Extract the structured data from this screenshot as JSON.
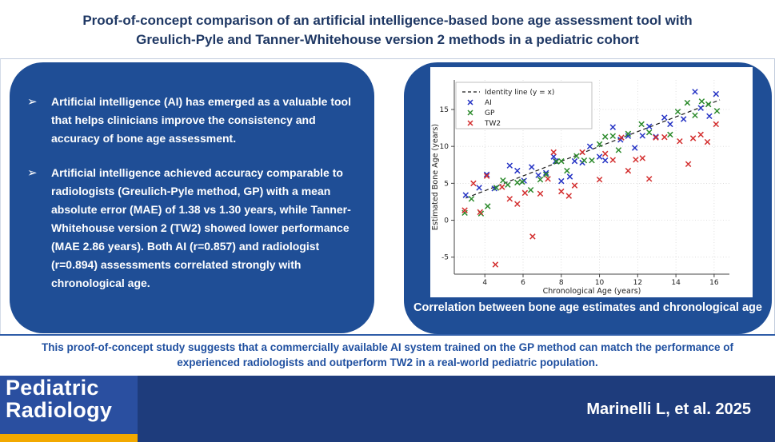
{
  "title": {
    "line1": "Proof-of-concept comparison of an artificial intelligence-based bone age assessment tool with",
    "line2": "Greulich-Pyle and Tanner-Whitehouse version 2 methods in a pediatric cohort"
  },
  "left_panel": {
    "bullet_glyph": "➢",
    "bullets": [
      "Artificial intelligence (AI) has emerged as a valuable tool that helps clinicians improve the consistency and accuracy of bone age assessment.",
      "Artificial intelligence achieved accuracy comparable to radiologists (Greulich-Pyle method, GP) with a mean absolute error (MAE) of 1.38 vs 1.30 years, while Tanner-Whitehouse version 2 (TW2) showed lower performance (MAE 2.86 years). Both AI (r=0.857) and radiologist (r=0.894) assessments correlated strongly with chronological age."
    ]
  },
  "right_panel": {
    "caption": "Correlation between bone age estimates and chronological age"
  },
  "summary": "This proof-of-concept study suggests that a commercially available AI system trained on the GP method can match the performance of experienced radiologists and outperform TW2 in a real-world pediatric population.",
  "footer": {
    "journal_line1": "Pediatric",
    "journal_line2": "Radiology",
    "citation": "Marinelli L, et al. 2025"
  },
  "colors": {
    "panel_blue": "#1F4E96",
    "title_navy": "#1F3864",
    "summary_blue": "#2050A0",
    "footer_bar": "#1E3C7C",
    "logo_square": "#2A4FA0",
    "logo_gold": "#F2A900",
    "series_ai": "#2533C4",
    "series_gp": "#2B8A2B",
    "series_tw2": "#D32F2F"
  },
  "chart_data": {
    "type": "scatter",
    "xlabel": "Chronological Age (years)",
    "ylabel": "Estimated Bone Age (years)",
    "xlim": [
      2.4,
      16.8
    ],
    "ylim": [
      -7.3,
      19
    ],
    "xticks": [
      4,
      6,
      8,
      10,
      12,
      14,
      16
    ],
    "yticks": [
      -5,
      0,
      5,
      10,
      15
    ],
    "grid": true,
    "legend_position": "upper-left",
    "identity_line": {
      "label": "Identity line (y = x)",
      "from": 3.0,
      "to": 16.3
    },
    "series": [
      {
        "name": "AI",
        "color": "#2533C4",
        "marker": "x",
        "points": [
          [
            3.0,
            3.4
          ],
          [
            3.7,
            4.4
          ],
          [
            4.1,
            6.2
          ],
          [
            4.5,
            4.3
          ],
          [
            5.3,
            7.4
          ],
          [
            5.7,
            6.7
          ],
          [
            6.05,
            5.35
          ],
          [
            6.45,
            7.2
          ],
          [
            6.8,
            6.1
          ],
          [
            7.2,
            6.4
          ],
          [
            7.6,
            8.6
          ],
          [
            7.7,
            8.0
          ],
          [
            8.0,
            5.3
          ],
          [
            8.45,
            5.9
          ],
          [
            8.7,
            8.0
          ],
          [
            9.1,
            7.8
          ],
          [
            9.5,
            10.0
          ],
          [
            10.0,
            8.6
          ],
          [
            10.3,
            8.1
          ],
          [
            10.7,
            12.6
          ],
          [
            11.1,
            10.9
          ],
          [
            11.5,
            11.4
          ],
          [
            11.85,
            9.8
          ],
          [
            12.25,
            11.45
          ],
          [
            12.6,
            12.7
          ],
          [
            12.95,
            11.3
          ],
          [
            13.4,
            13.9
          ],
          [
            13.7,
            13.0
          ],
          [
            14.4,
            13.7
          ],
          [
            15.0,
            17.4
          ],
          [
            15.3,
            15.2
          ],
          [
            15.75,
            14.1
          ],
          [
            16.1,
            17.1
          ]
        ]
      },
      {
        "name": "GP",
        "color": "#2B8A2B",
        "marker": "x",
        "points": [
          [
            2.95,
            1.0
          ],
          [
            3.3,
            2.9
          ],
          [
            3.8,
            0.9
          ],
          [
            4.15,
            1.9
          ],
          [
            4.6,
            4.4
          ],
          [
            4.95,
            5.4
          ],
          [
            5.2,
            4.8
          ],
          [
            5.7,
            5.1
          ],
          [
            5.95,
            5.2
          ],
          [
            6.4,
            4.1
          ],
          [
            6.9,
            5.5
          ],
          [
            7.2,
            6.2
          ],
          [
            7.75,
            7.95
          ],
          [
            8.0,
            8.0
          ],
          [
            8.3,
            6.7
          ],
          [
            8.8,
            8.7
          ],
          [
            9.2,
            8.1
          ],
          [
            9.6,
            8.1
          ],
          [
            10.0,
            10.3
          ],
          [
            10.3,
            11.3
          ],
          [
            10.7,
            11.4
          ],
          [
            11.0,
            9.5
          ],
          [
            11.5,
            11.7
          ],
          [
            12.2,
            13.0
          ],
          [
            12.6,
            11.9
          ],
          [
            13.7,
            11.6
          ],
          [
            14.1,
            14.7
          ],
          [
            14.6,
            15.9
          ],
          [
            15.0,
            14.2
          ],
          [
            15.35,
            16.1
          ],
          [
            15.7,
            15.7
          ],
          [
            16.15,
            14.8
          ]
        ]
      },
      {
        "name": "TW2",
        "color": "#D32F2F",
        "marker": "x",
        "points": [
          [
            2.95,
            1.35
          ],
          [
            3.4,
            5.0
          ],
          [
            3.75,
            1.1
          ],
          [
            4.1,
            6.0
          ],
          [
            4.55,
            -6.0
          ],
          [
            4.9,
            4.5
          ],
          [
            5.3,
            2.9
          ],
          [
            5.7,
            2.2
          ],
          [
            6.1,
            3.7
          ],
          [
            6.5,
            -2.2
          ],
          [
            6.9,
            3.6
          ],
          [
            7.3,
            5.6
          ],
          [
            7.6,
            9.2
          ],
          [
            8.0,
            3.9
          ],
          [
            8.4,
            3.3
          ],
          [
            8.7,
            4.7
          ],
          [
            9.1,
            9.2
          ],
          [
            10.0,
            5.5
          ],
          [
            10.3,
            9.0
          ],
          [
            10.7,
            8.15
          ],
          [
            11.15,
            11.2
          ],
          [
            11.5,
            6.7
          ],
          [
            11.9,
            8.2
          ],
          [
            12.25,
            8.4
          ],
          [
            12.6,
            5.6
          ],
          [
            12.95,
            11.2
          ],
          [
            13.4,
            11.25
          ],
          [
            14.2,
            10.7
          ],
          [
            14.65,
            7.6
          ],
          [
            14.9,
            11.1
          ],
          [
            15.3,
            11.6
          ],
          [
            15.65,
            10.6
          ],
          [
            16.1,
            13.0
          ]
        ]
      }
    ]
  }
}
